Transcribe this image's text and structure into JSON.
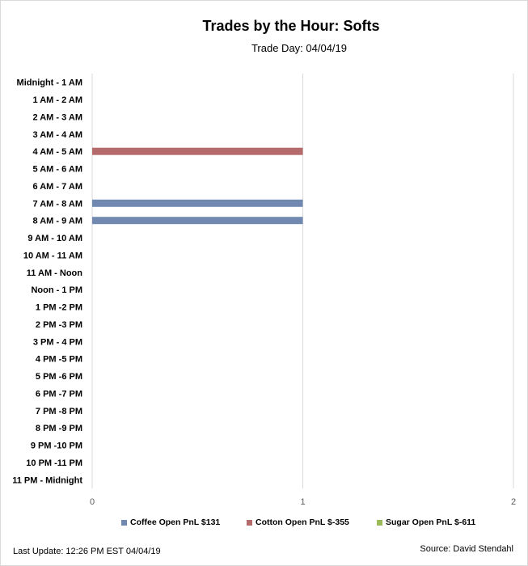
{
  "chart_data": {
    "type": "bar",
    "orientation": "horizontal",
    "title": "Trades by the Hour: Softs",
    "subtitle": "Trade Day: 04/04/19",
    "categories": [
      "Midnight - 1 AM",
      "1 AM - 2 AM",
      "2 AM - 3 AM",
      "3 AM - 4 AM",
      "4 AM - 5 AM",
      "5 AM - 6 AM",
      "6 AM - 7 AM",
      "7 AM - 8 AM",
      "8 AM - 9 AM",
      "9 AM - 10 AM",
      "10 AM - 11 AM",
      "11 AM - Noon",
      "Noon - 1 PM",
      "1 PM -2 PM",
      "2 PM -3 PM",
      "3 PM - 4 PM",
      "4 PM -5 PM",
      "5 PM -6 PM",
      "6 PM -7 PM",
      "7 PM -8 PM",
      "8 PM -9 PM",
      "9 PM -10 PM",
      "10 PM -11 PM",
      "11 PM - Midnight"
    ],
    "series": [
      {
        "name": "Coffee Open PnL $131",
        "color": "#7189b0",
        "values": [
          0,
          0,
          0,
          0,
          0,
          0,
          0,
          1,
          1,
          0,
          0,
          0,
          0,
          0,
          0,
          0,
          0,
          0,
          0,
          0,
          0,
          0,
          0,
          0
        ]
      },
      {
        "name": "Cotton Open PnL $-355",
        "color": "#b56b6b",
        "values": [
          0,
          0,
          0,
          0,
          1,
          0,
          0,
          0,
          0,
          0,
          0,
          0,
          0,
          0,
          0,
          0,
          0,
          0,
          0,
          0,
          0,
          0,
          0,
          0
        ]
      },
      {
        "name": "Sugar Open PnL $-611",
        "color": "#9bbb59",
        "values": [
          0,
          0,
          0,
          0,
          0,
          0,
          0,
          0,
          0,
          0,
          0,
          0,
          0,
          0,
          0,
          0,
          0,
          0,
          0,
          0,
          0,
          0,
          0,
          0
        ]
      }
    ],
    "xlim": [
      0,
      2
    ],
    "xticks": [
      "0",
      "1",
      "2"
    ],
    "grid": true,
    "legend_position": "bottom"
  },
  "footer": {
    "last_update": "Last Update: 12:26 PM EST  04/04/19",
    "source": "Source: David Stendahl"
  },
  "colors": {
    "gridline": "#d9d9d9"
  }
}
